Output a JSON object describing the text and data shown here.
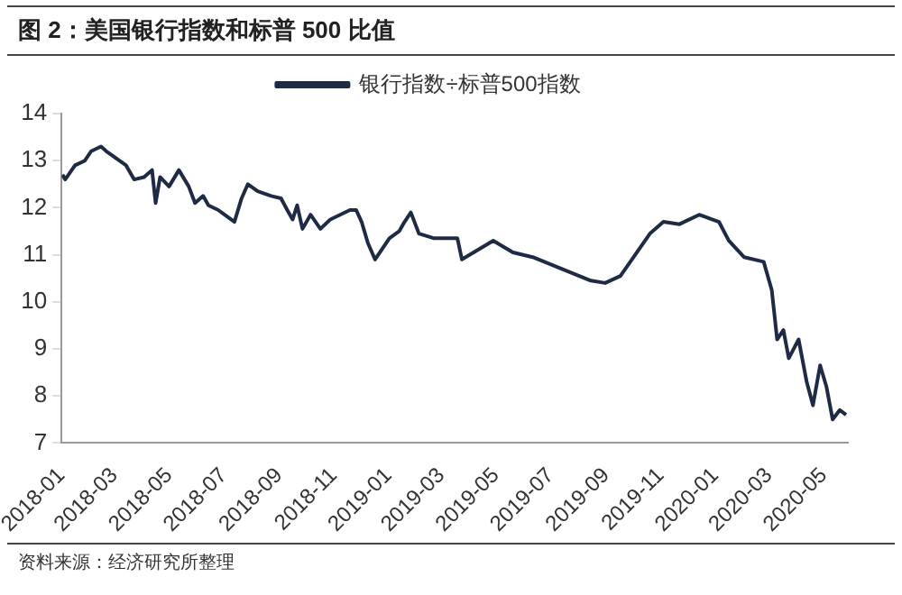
{
  "chart_data": {
    "type": "line",
    "title": "图 2：美国银行指数和标普 500 比值",
    "annotations": [
      "资料来源：经济研究所整理"
    ],
    "x": [
      "2018-01-02",
      "2018-01-05",
      "2018-01-16",
      "2018-01-27",
      "2018-02-03",
      "2018-02-14",
      "2018-02-20",
      "2018-03-03",
      "2018-03-14",
      "2018-03-23",
      "2018-04-03",
      "2018-04-12",
      "2018-04-16",
      "2018-04-21",
      "2018-05-01",
      "2018-05-12",
      "2018-05-23",
      "2018-05-30",
      "2018-06-08",
      "2018-06-14",
      "2018-06-25",
      "2018-07-02",
      "2018-07-13",
      "2018-07-21",
      "2018-07-28",
      "2018-08-08",
      "2018-08-23",
      "2018-09-03",
      "2018-09-10",
      "2018-09-16",
      "2018-09-21",
      "2018-09-27",
      "2018-10-06",
      "2018-10-17",
      "2018-10-28",
      "2018-11-08",
      "2018-11-19",
      "2018-11-26",
      "2018-12-02",
      "2018-12-09",
      "2018-12-17",
      "2019-01-02",
      "2019-01-13",
      "2019-01-19",
      "2019-01-26",
      "2019-02-04",
      "2019-02-21",
      "2019-03-19",
      "2019-03-24",
      "2019-04-28",
      "2019-05-20",
      "2019-06-11",
      "2019-08-15",
      "2019-08-31",
      "2019-09-17",
      "2019-10-20",
      "2019-11-04",
      "2019-11-22",
      "2019-12-14",
      "2020-01-05",
      "2020-01-16",
      "2020-02-02",
      "2020-02-24",
      "2020-03-04",
      "2020-03-10",
      "2020-03-17",
      "2020-03-23",
      "2020-04-03",
      "2020-04-12",
      "2020-04-19",
      "2020-04-27",
      "2020-05-04",
      "2020-05-11",
      "2020-05-19",
      "2020-05-26"
    ],
    "series": [
      {
        "name": "银行指数÷标普500指数",
        "color": "#1f2a44",
        "values": [
          12.7,
          12.6,
          12.9,
          13.0,
          13.2,
          13.3,
          13.2,
          13.05,
          12.9,
          12.6,
          12.65,
          12.8,
          12.1,
          12.65,
          12.45,
          12.8,
          12.45,
          12.1,
          12.25,
          12.05,
          11.95,
          11.85,
          11.7,
          12.2,
          12.5,
          12.35,
          12.25,
          12.2,
          11.95,
          11.75,
          12.05,
          11.55,
          11.85,
          11.55,
          11.75,
          11.85,
          11.95,
          11.95,
          11.7,
          11.25,
          10.9,
          11.35,
          11.5,
          11.7,
          11.9,
          11.45,
          11.35,
          11.35,
          10.9,
          11.3,
          11.05,
          10.95,
          10.45,
          10.4,
          10.55,
          11.45,
          11.7,
          11.65,
          11.85,
          11.7,
          11.3,
          10.95,
          10.85,
          10.25,
          9.2,
          9.4,
          8.8,
          9.2,
          8.3,
          7.8,
          8.65,
          8.2,
          7.5,
          7.7,
          7.6
        ]
      }
    ],
    "xlim": [
      "2018-01-01",
      "2020-05-28"
    ],
    "xticks": [
      "2018-01",
      "2018-03",
      "2018-05",
      "2018-07",
      "2018-09",
      "2018-11",
      "2019-01",
      "2019-03",
      "2019-05",
      "2019-07",
      "2019-09",
      "2019-11",
      "2020-01",
      "2020-03",
      "2020-05"
    ],
    "ylim": [
      7,
      14
    ],
    "yticks": [
      7,
      8,
      9,
      10,
      11,
      12,
      13,
      14
    ],
    "grid": false,
    "legend": "top",
    "marker": "none",
    "line_style": "solid"
  }
}
